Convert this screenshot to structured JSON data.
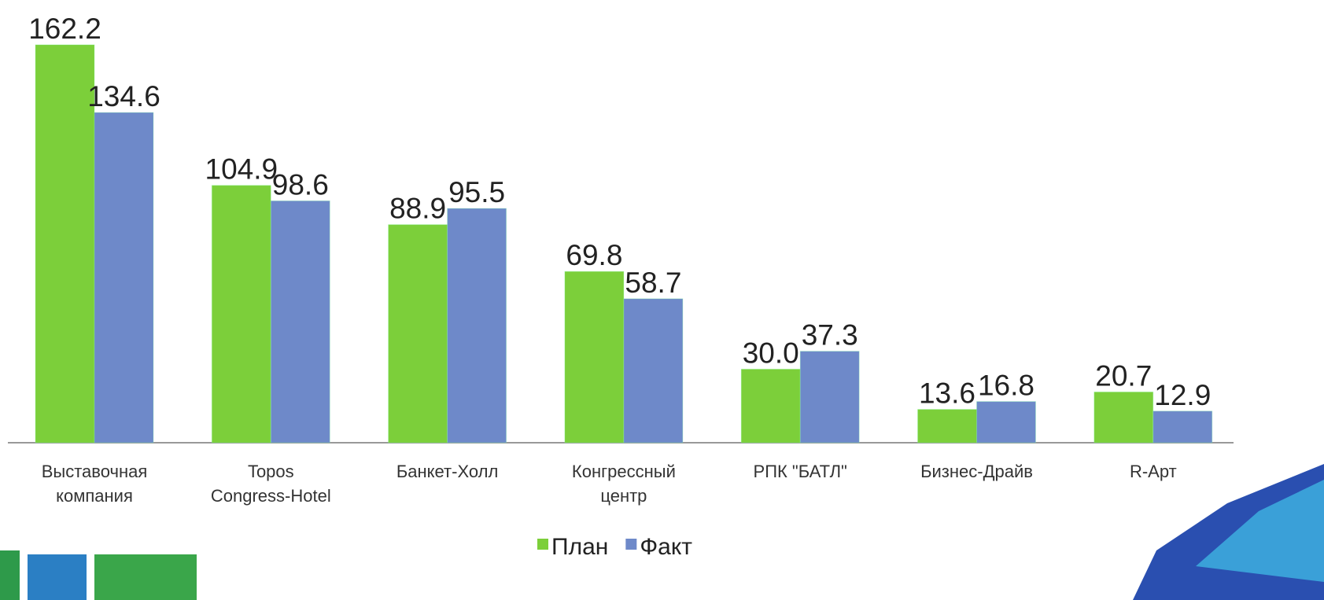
{
  "chart_data": {
    "type": "bar",
    "categories": [
      "Выставочная\nкомпания",
      "Topos\nCongress-Hotel",
      "Банкет-Холл",
      "Конгрессный\nцентр",
      "РПК \"БАТЛ\"",
      "Бизнес-Драйв",
      "R-Арт"
    ],
    "series": [
      {
        "name": "План",
        "color": "#7ccf3a",
        "values": [
          162.2,
          104.9,
          88.9,
          69.8,
          30.0,
          13.6,
          20.7
        ],
        "value_labels": [
          "162.2",
          "104.9",
          "88.9",
          "69.8",
          "30.0",
          "13.6",
          "20.7"
        ]
      },
      {
        "name": "Факт",
        "color": "#6e89c9",
        "values": [
          134.6,
          98.6,
          95.5,
          58.7,
          37.3,
          16.8,
          12.9
        ],
        "value_labels": [
          "134.6",
          "98.6",
          "95.5",
          "58.7",
          "37.3",
          "16.8",
          "12.9"
        ]
      }
    ],
    "legend": "bottom"
  }
}
